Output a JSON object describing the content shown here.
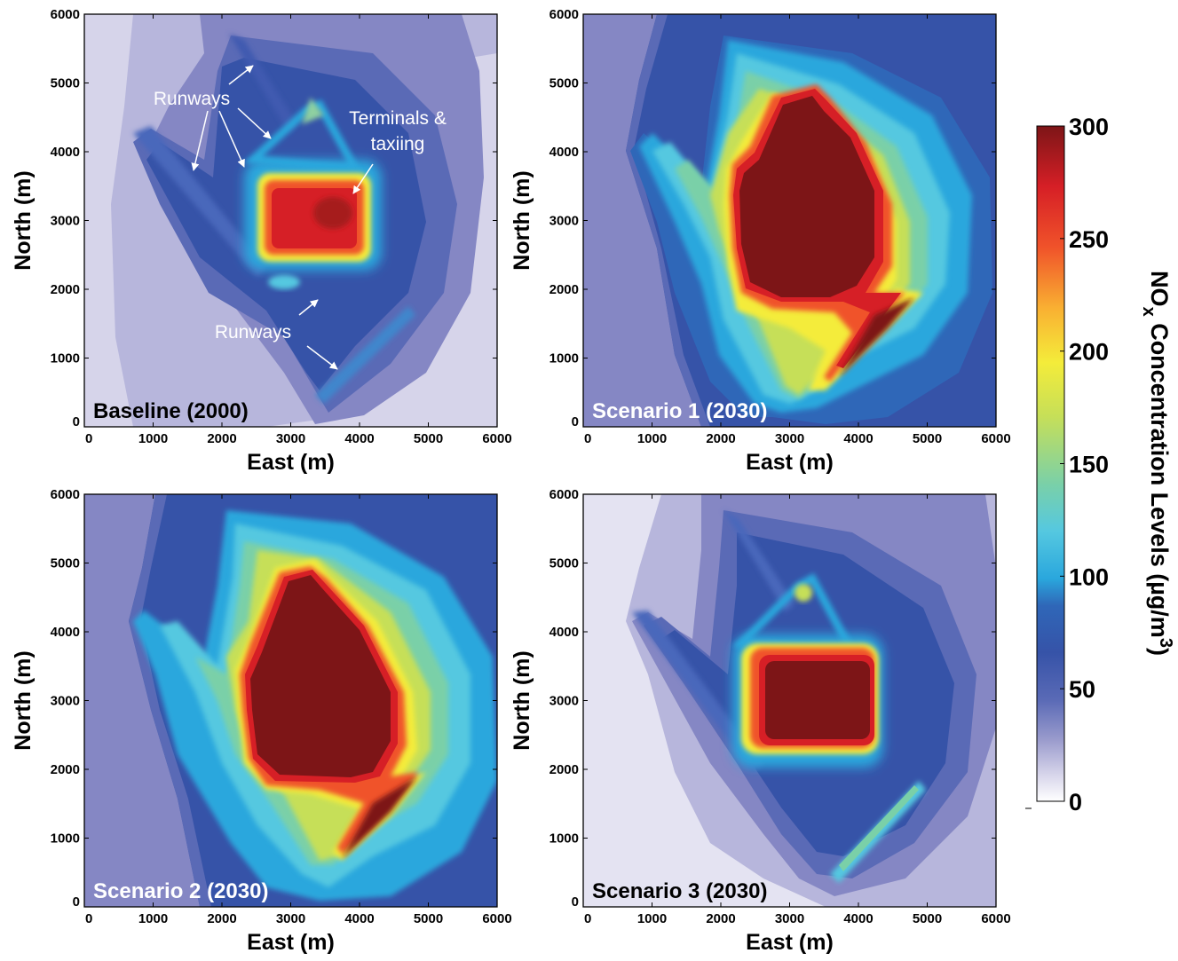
{
  "chart_data": {
    "type": "heatmap",
    "colorbar": {
      "label_main": "NO",
      "label_sub": "x",
      "label_rest": " Concentration Levels (µg/m",
      "label_sup": "3",
      "label_end": ")",
      "ticks": [
        "0",
        "50",
        "100",
        "150",
        "200",
        "250",
        "300"
      ],
      "tick_values": [
        0,
        50,
        100,
        150,
        200,
        250,
        300
      ],
      "range": [
        0,
        300
      ],
      "colormap": [
        "#f7f7ff",
        "#d6d4ea",
        "#9b9ccd",
        "#5a6ab6",
        "#3653a8",
        "#2f67b8",
        "#2aa7dd",
        "#55c8e0",
        "#7ad0a8",
        "#c6df58",
        "#f4ec3a",
        "#f9b032",
        "#f0532a",
        "#d61f26",
        "#7d1517"
      ]
    },
    "panels": [
      {
        "title": "Baseline (2000)",
        "title_color": "#000000",
        "xlabel": "East (m)",
        "ylabel": "North (m)",
        "xlim": [
          0,
          6000
        ],
        "ylim": [
          0,
          6000
        ],
        "xticks": [
          "0",
          "1000",
          "2000",
          "3000",
          "4000",
          "5000",
          "6000"
        ],
        "yticks": [
          "0",
          "1000",
          "2000",
          "3000",
          "4000",
          "5000",
          "6000"
        ],
        "background_level": 15,
        "outer_level": 45,
        "core_level": 270,
        "annotations": [
          "Runways",
          "Terminals &",
          "taxiing",
          "Runways"
        ]
      },
      {
        "title": "Scenario 1 (2030)",
        "title_color": "#ffffff",
        "xlabel": "East (m)",
        "ylabel": "North (m)",
        "xlim": [
          0,
          6000
        ],
        "ylim": [
          0,
          6000
        ],
        "xticks": [
          "0",
          "1000",
          "2000",
          "3000",
          "4000",
          "5000",
          "6000"
        ],
        "yticks": [
          "0",
          "1000",
          "2000",
          "3000",
          "4000",
          "5000",
          "6000"
        ],
        "background_level": 40,
        "outer_level": 60,
        "core_level": 300
      },
      {
        "title": "Scenario 2 (2030)",
        "title_color": "#ffffff",
        "xlabel": "East (m)",
        "ylabel": "North (m)",
        "xlim": [
          0,
          6000
        ],
        "ylim": [
          0,
          6000
        ],
        "xticks": [
          "0",
          "1000",
          "2000",
          "3000",
          "4000",
          "5000",
          "6000"
        ],
        "yticks": [
          "0",
          "1000",
          "2000",
          "3000",
          "4000",
          "5000",
          "6000"
        ],
        "background_level": 40,
        "outer_level": 70,
        "core_level": 300
      },
      {
        "title": "Scenario 3 (2030)",
        "title_color": "#000000",
        "xlabel": "East (m)",
        "ylabel": "North (m)",
        "xlim": [
          0,
          6000
        ],
        "ylim": [
          0,
          6000
        ],
        "xticks": [
          "0",
          "1000",
          "2000",
          "3000",
          "4000",
          "5000",
          "6000"
        ],
        "yticks": [
          "0",
          "1000",
          "2000",
          "3000",
          "4000",
          "5000",
          "6000"
        ],
        "background_level": 15,
        "outer_level": 40,
        "core_level": 300
      }
    ]
  }
}
